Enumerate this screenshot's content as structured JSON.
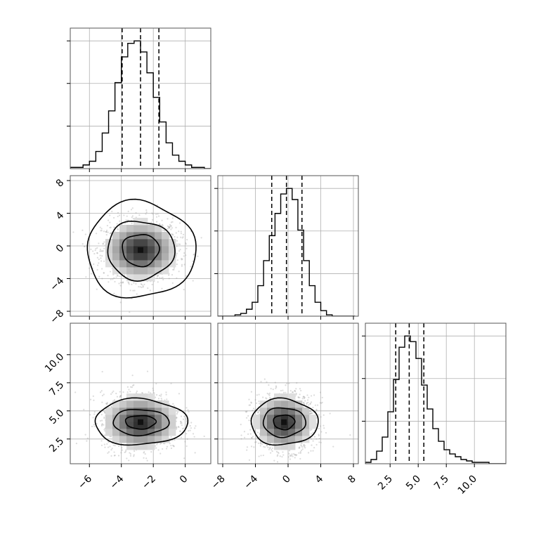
{
  "chart_data": {
    "type": "corner",
    "parameters": [
      {
        "range": [
          -7.2,
          1.6
        ],
        "ticks": [
          -6,
          -4,
          -2,
          0
        ],
        "tick_labels": [
          "−6",
          "−4",
          "−2",
          "0"
        ],
        "mean": -2.8,
        "std": 1.15,
        "quantiles": [
          -3.95,
          -2.8,
          -1.65
        ]
      },
      {
        "range": [
          -8.6,
          8.6
        ],
        "ticks": [
          -8,
          -4,
          0,
          4,
          8
        ],
        "tick_labels": [
          "−8",
          "−4",
          "0",
          "4",
          "8"
        ],
        "mean": -0.2,
        "std": 1.8,
        "quantiles": [
          -2.0,
          -0.2,
          1.7
        ]
      },
      {
        "range": [
          0.3,
          12.8
        ],
        "ticks": [
          2.5,
          5.0,
          7.5,
          10.0
        ],
        "tick_labels": [
          "2.5",
          "5.0",
          "7.5",
          "10.0"
        ],
        "mean": 4.2,
        "std": 1.2,
        "quantiles": [
          3.0,
          4.2,
          5.5
        ]
      }
    ],
    "histograms": [
      {
        "param": 0,
        "bin_edges": [
          -7.2,
          -6.8,
          -6.4,
          -6.0,
          -5.6,
          -5.2,
          -4.8,
          -4.4,
          -4.0,
          -3.6,
          -3.2,
          -2.8,
          -2.4,
          -2.0,
          -1.6,
          -1.2,
          -0.8,
          -0.4,
          0.0,
          0.4,
          0.8,
          1.2,
          1.6
        ],
        "counts": [
          1,
          1,
          3,
          6,
          14,
          29,
          47,
          70,
          91,
          102,
          104,
          95,
          78,
          58,
          38,
          21,
          11,
          6,
          3,
          1,
          1,
          0
        ]
      },
      {
        "param": 1,
        "bin_edges": [
          -8.6,
          -7.9,
          -7.2,
          -6.5,
          -5.8,
          -5.1,
          -4.4,
          -3.7,
          -3.0,
          -2.3,
          -1.6,
          -0.9,
          -0.2,
          0.5,
          1.2,
          1.9,
          2.6,
          3.3,
          4.0,
          4.7,
          5.4,
          6.1,
          6.8,
          7.5,
          8.2
        ],
        "counts": [
          0,
          0,
          0,
          1,
          2,
          5,
          10,
          22,
          40,
          58,
          74,
          88,
          92,
          84,
          62,
          40,
          22,
          10,
          4,
          1,
          0,
          0,
          0,
          0
        ]
      },
      {
        "param": 2,
        "bin_edges": [
          0.3,
          0.8,
          1.3,
          1.8,
          2.3,
          2.8,
          3.3,
          3.8,
          4.3,
          4.8,
          5.3,
          5.8,
          6.3,
          6.8,
          7.3,
          7.8,
          8.3,
          8.8,
          9.3,
          9.8,
          10.3,
          10.8,
          11.3,
          11.8,
          12.3,
          12.8
        ],
        "counts": [
          1,
          3,
          9,
          19,
          37,
          60,
          83,
          91,
          87,
          75,
          56,
          39,
          25,
          16,
          10,
          7,
          5,
          3,
          2,
          1,
          1,
          1,
          0,
          0,
          0
        ]
      }
    ],
    "pairs": [
      {
        "x_param": 0,
        "y_param": 1,
        "center": [
          -2.8,
          -0.5
        ],
        "contour_radii": [
          [
            1.15,
            1.95
          ],
          [
            2.1,
            3.6
          ],
          [
            3.4,
            5.9
          ]
        ]
      },
      {
        "x_param": 0,
        "y_param": 2,
        "center": [
          -2.8,
          4.0
        ],
        "contour_radii": [
          [
            0.95,
            0.6
          ],
          [
            1.75,
            1.15
          ],
          [
            2.9,
            2.05
          ]
        ]
      },
      {
        "x_param": 1,
        "y_param": 2,
        "center": [
          -0.5,
          4.0
        ],
        "contour_radii": [
          [
            1.3,
            0.65
          ],
          [
            2.6,
            1.3
          ],
          [
            4.1,
            2.05
          ]
        ]
      }
    ]
  }
}
